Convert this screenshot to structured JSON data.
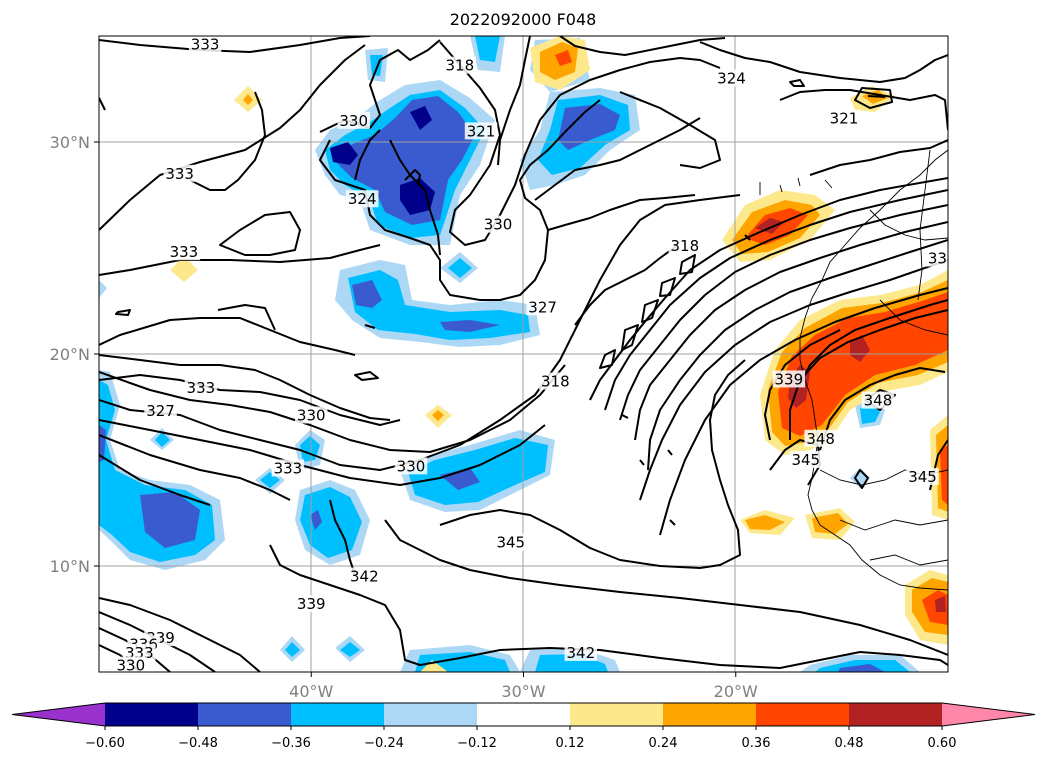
{
  "chart_data": {
    "type": "contour map",
    "title": "2022092000 F048",
    "lon_range": [
      -50,
      -10
    ],
    "lat_range": [
      5,
      35
    ],
    "x_ticks": [
      {
        "value": -40,
        "label": "40°W"
      },
      {
        "value": -30,
        "label": "30°W"
      },
      {
        "value": -20,
        "label": "20°W"
      }
    ],
    "y_ticks": [
      {
        "value": 30,
        "label": "30°N"
      },
      {
        "value": 20,
        "label": "20°N"
      },
      {
        "value": 10,
        "label": "10°N"
      }
    ],
    "grid": true,
    "colorbar": {
      "placement": "bottom",
      "extend": "both",
      "boundaries": [
        -0.6,
        -0.48,
        -0.36,
        -0.24,
        -0.12,
        0.12,
        0.24,
        0.36,
        0.48,
        0.6
      ],
      "tick_labels": [
        "−0.60",
        "−0.48",
        "−0.36",
        "−0.24",
        "−0.12",
        "0.12",
        "0.24",
        "0.36",
        "0.48",
        "0.60"
      ],
      "colors": [
        "#9932cc",
        "#00008b",
        "#3a5bd0",
        "#00bfff",
        "#add8f5",
        "#ffffff",
        "#fde98c",
        "#ffa500",
        "#ff4500",
        "#b22222",
        "#ff88aa"
      ]
    },
    "contour_labels": [
      {
        "lon": -45.0,
        "lat": 34.6,
        "text": "333"
      },
      {
        "lon": -33.0,
        "lat": 33.6,
        "text": "318"
      },
      {
        "lon": -20.2,
        "lat": 33.0,
        "text": "324"
      },
      {
        "lon": -32.0,
        "lat": 30.5,
        "text": "321"
      },
      {
        "lon": -14.9,
        "lat": 31.1,
        "text": "321"
      },
      {
        "lon": -46.2,
        "lat": 28.5,
        "text": "333"
      },
      {
        "lon": -38.0,
        "lat": 31.0,
        "text": "330"
      },
      {
        "lon": -37.6,
        "lat": 27.3,
        "text": "324"
      },
      {
        "lon": -31.2,
        "lat": 26.1,
        "text": "330"
      },
      {
        "lon": -22.4,
        "lat": 25.1,
        "text": "318"
      },
      {
        "lon": -46.0,
        "lat": 24.8,
        "text": "333"
      },
      {
        "lon": -10.5,
        "lat": 24.5,
        "text": "33"
      },
      {
        "lon": -29.1,
        "lat": 22.2,
        "text": "327"
      },
      {
        "lon": -45.2,
        "lat": 18.4,
        "text": "333"
      },
      {
        "lon": -28.5,
        "lat": 18.7,
        "text": "318"
      },
      {
        "lon": -17.5,
        "lat": 18.8,
        "text": "339"
      },
      {
        "lon": -13.3,
        "lat": 17.8,
        "text": "348"
      },
      {
        "lon": -47.1,
        "lat": 17.3,
        "text": "327"
      },
      {
        "lon": -40.0,
        "lat": 17.1,
        "text": "330"
      },
      {
        "lon": -16.0,
        "lat": 16.0,
        "text": "348"
      },
      {
        "lon": -41.1,
        "lat": 14.6,
        "text": "333"
      },
      {
        "lon": -35.3,
        "lat": 14.7,
        "text": "330"
      },
      {
        "lon": -16.7,
        "lat": 15.0,
        "text": "345"
      },
      {
        "lon": -11.2,
        "lat": 14.2,
        "text": "345"
      },
      {
        "lon": -30.6,
        "lat": 11.1,
        "text": "345"
      },
      {
        "lon": -37.5,
        "lat": 9.5,
        "text": "342"
      },
      {
        "lon": -40.0,
        "lat": 8.2,
        "text": "339"
      },
      {
        "lon": -47.1,
        "lat": 6.6,
        "text": "339"
      },
      {
        "lon": -47.9,
        "lat": 6.3,
        "text": "336"
      },
      {
        "lon": -48.1,
        "lat": 5.9,
        "text": "333"
      },
      {
        "lon": -48.5,
        "lat": 5.3,
        "text": "330"
      },
      {
        "lon": -27.3,
        "lat": 5.9,
        "text": "342"
      }
    ]
  }
}
